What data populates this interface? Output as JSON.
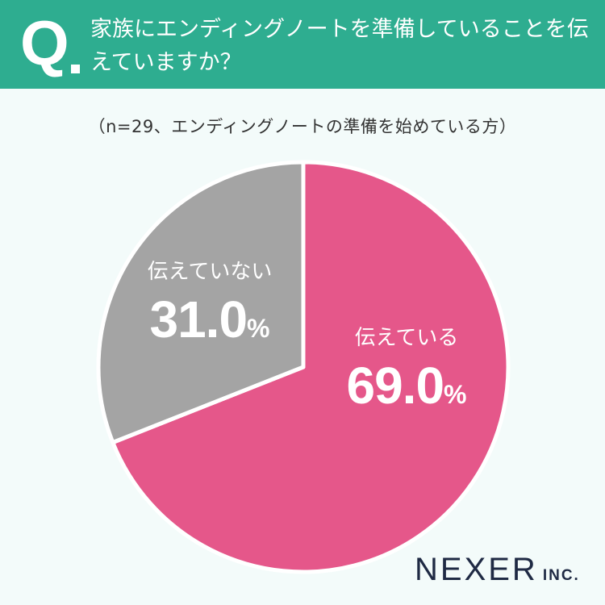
{
  "header": {
    "q_mark": "Q",
    "question": "家族にエンディングノートを準備していることを伝えていますか？"
  },
  "subtitle": "（n=29、エンディングノートの準備を始めている方）",
  "chart_data": {
    "type": "pie",
    "categories": [
      "伝えている",
      "伝えていない"
    ],
    "values": [
      69.0,
      31.0
    ],
    "value_labels": [
      "69.0",
      "31.0"
    ],
    "unit": "%",
    "colors": [
      "#e5578a",
      "#a4a4a4"
    ],
    "start": "12 o'clock",
    "direction": "clockwise"
  },
  "logo": {
    "main": "NEXER",
    "sub": "INC."
  }
}
